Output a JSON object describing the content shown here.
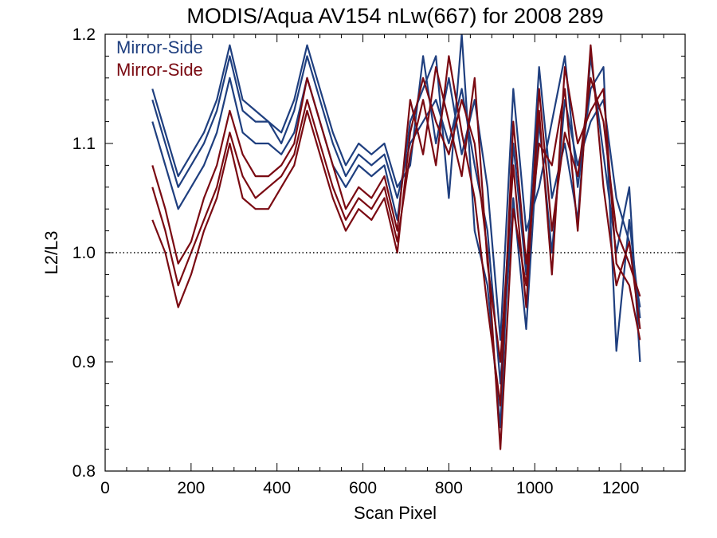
{
  "chart_data": {
    "type": "line",
    "title": "MODIS/Aqua AV154 nLw(667) for 2008 289",
    "xlabel": "Scan Pixel",
    "ylabel": "L2/L3",
    "xlim": [
      0,
      1350
    ],
    "ylim": [
      0.8,
      1.2
    ],
    "x_ticks": [
      0,
      200,
      400,
      600,
      800,
      1000,
      1200
    ],
    "y_ticks": [
      0.8,
      0.9,
      1.0,
      1.1,
      1.2
    ],
    "x_tick_labels": [
      "0",
      "200",
      "400",
      "600",
      "800",
      "1000",
      "1200"
    ],
    "y_tick_labels": [
      "0.8",
      "0.9",
      "1.0",
      "1.1",
      "1.2"
    ],
    "reference_line": {
      "y": 1.0,
      "style": "dotted"
    },
    "legend": {
      "placement": "top-left",
      "entries": [
        {
          "label": "Mirror-Side",
          "color": "#1f3f7f"
        },
        {
          "label": "Mirror-Side",
          "color": "#7a0a12"
        }
      ]
    },
    "series": [
      {
        "color": "#1f3f7f",
        "x": [
          110,
          140,
          170,
          200,
          230,
          260,
          290,
          320,
          350,
          380,
          410,
          440,
          470,
          500,
          530,
          560,
          590,
          620,
          650,
          680,
          710,
          740,
          770,
          800,
          830,
          860,
          890,
          920,
          950,
          980,
          1010,
          1040,
          1070,
          1100,
          1130,
          1160,
          1190,
          1220,
          1245
        ],
        "y": [
          1.14,
          1.1,
          1.06,
          1.08,
          1.1,
          1.13,
          1.18,
          1.13,
          1.12,
          1.12,
          1.1,
          1.13,
          1.18,
          1.14,
          1.1,
          1.07,
          1.09,
          1.08,
          1.09,
          1.05,
          1.1,
          1.12,
          1.14,
          1.1,
          1.15,
          1.08,
          1.02,
          0.88,
          1.05,
          0.93,
          1.12,
          1.0,
          1.14,
          1.08,
          1.12,
          1.14,
          1.05,
          1.01,
          0.95
        ]
      },
      {
        "color": "#1f3f7f",
        "x": [
          110,
          140,
          170,
          200,
          230,
          260,
          290,
          320,
          350,
          380,
          410,
          440,
          470,
          500,
          530,
          560,
          590,
          620,
          650,
          680,
          710,
          740,
          770,
          800,
          830,
          860,
          890,
          920,
          950,
          980,
          1010,
          1040,
          1070,
          1100,
          1130,
          1160,
          1190,
          1220,
          1245
        ],
        "y": [
          1.12,
          1.08,
          1.04,
          1.06,
          1.08,
          1.11,
          1.16,
          1.11,
          1.1,
          1.1,
          1.09,
          1.11,
          1.16,
          1.12,
          1.08,
          1.06,
          1.08,
          1.07,
          1.08,
          1.03,
          1.12,
          1.15,
          1.18,
          1.05,
          1.2,
          1.02,
          0.97,
          0.84,
          1.1,
          0.98,
          1.17,
          1.05,
          1.1,
          1.03,
          1.18,
          1.09,
          1.0,
          1.06,
          0.9
        ]
      },
      {
        "color": "#1f3f7f",
        "x": [
          110,
          140,
          170,
          200,
          230,
          260,
          290,
          320,
          350,
          380,
          410,
          440,
          470,
          500,
          530,
          560,
          590,
          620,
          650,
          680,
          710,
          740,
          770,
          800,
          830,
          860,
          890,
          920,
          950,
          980,
          1010,
          1040,
          1070,
          1100,
          1130,
          1160,
          1190,
          1220,
          1245
        ],
        "y": [
          1.15,
          1.11,
          1.07,
          1.09,
          1.11,
          1.14,
          1.19,
          1.14,
          1.13,
          1.12,
          1.11,
          1.14,
          1.19,
          1.15,
          1.11,
          1.08,
          1.1,
          1.09,
          1.1,
          1.06,
          1.08,
          1.18,
          1.1,
          1.16,
          1.09,
          1.14,
          1.06,
          0.92,
          1.15,
          1.02,
          1.06,
          1.12,
          1.18,
          1.06,
          1.15,
          1.17,
          0.91,
          1.03,
          0.94
        ]
      },
      {
        "color": "#7a0a12",
        "x": [
          110,
          140,
          170,
          200,
          230,
          260,
          290,
          320,
          350,
          380,
          410,
          440,
          470,
          500,
          530,
          560,
          590,
          620,
          650,
          680,
          710,
          740,
          770,
          800,
          830,
          860,
          890,
          920,
          950,
          980,
          1010,
          1040,
          1070,
          1100,
          1130,
          1160,
          1190,
          1220,
          1245
        ],
        "y": [
          1.08,
          1.04,
          0.99,
          1.01,
          1.05,
          1.08,
          1.13,
          1.09,
          1.07,
          1.07,
          1.08,
          1.1,
          1.16,
          1.12,
          1.08,
          1.04,
          1.06,
          1.05,
          1.07,
          1.02,
          1.14,
          1.09,
          1.17,
          1.12,
          1.07,
          1.16,
          0.99,
          0.9,
          1.08,
          0.95,
          1.15,
          1.02,
          1.11,
          1.07,
          1.16,
          1.12,
          1.02,
          0.99,
          0.96
        ]
      },
      {
        "color": "#7a0a12",
        "x": [
          110,
          140,
          170,
          200,
          230,
          260,
          290,
          320,
          350,
          380,
          410,
          440,
          470,
          500,
          530,
          560,
          590,
          620,
          650,
          680,
          710,
          740,
          770,
          800,
          830,
          860,
          890,
          920,
          950,
          980,
          1010,
          1040,
          1070,
          1100,
          1130,
          1160,
          1190,
          1220,
          1245
        ],
        "y": [
          1.06,
          1.02,
          0.97,
          1.0,
          1.03,
          1.06,
          1.11,
          1.07,
          1.05,
          1.06,
          1.07,
          1.09,
          1.14,
          1.1,
          1.06,
          1.03,
          1.05,
          1.04,
          1.06,
          1.01,
          1.09,
          1.14,
          1.08,
          1.18,
          1.11,
          1.05,
          0.95,
          0.86,
          1.12,
          0.99,
          1.1,
          1.08,
          1.15,
          1.02,
          1.19,
          1.06,
          0.97,
          1.01,
          0.93
        ]
      },
      {
        "color": "#7a0a12",
        "x": [
          110,
          140,
          170,
          200,
          230,
          260,
          290,
          320,
          350,
          380,
          410,
          440,
          470,
          500,
          530,
          560,
          590,
          620,
          650,
          680,
          710,
          740,
          770,
          800,
          830,
          860,
          890,
          920,
          950,
          980,
          1010,
          1040,
          1070,
          1100,
          1130,
          1160,
          1190,
          1220,
          1245
        ],
        "y": [
          1.03,
          1.0,
          0.95,
          0.98,
          1.02,
          1.05,
          1.1,
          1.05,
          1.04,
          1.04,
          1.06,
          1.08,
          1.13,
          1.09,
          1.05,
          1.02,
          1.04,
          1.03,
          1.05,
          1.0,
          1.11,
          1.16,
          1.12,
          1.09,
          1.14,
          1.1,
          1.0,
          0.82,
          1.04,
          0.97,
          1.13,
          0.98,
          1.17,
          1.1,
          1.13,
          1.15,
          0.99,
          0.97,
          0.92
        ]
      }
    ]
  }
}
